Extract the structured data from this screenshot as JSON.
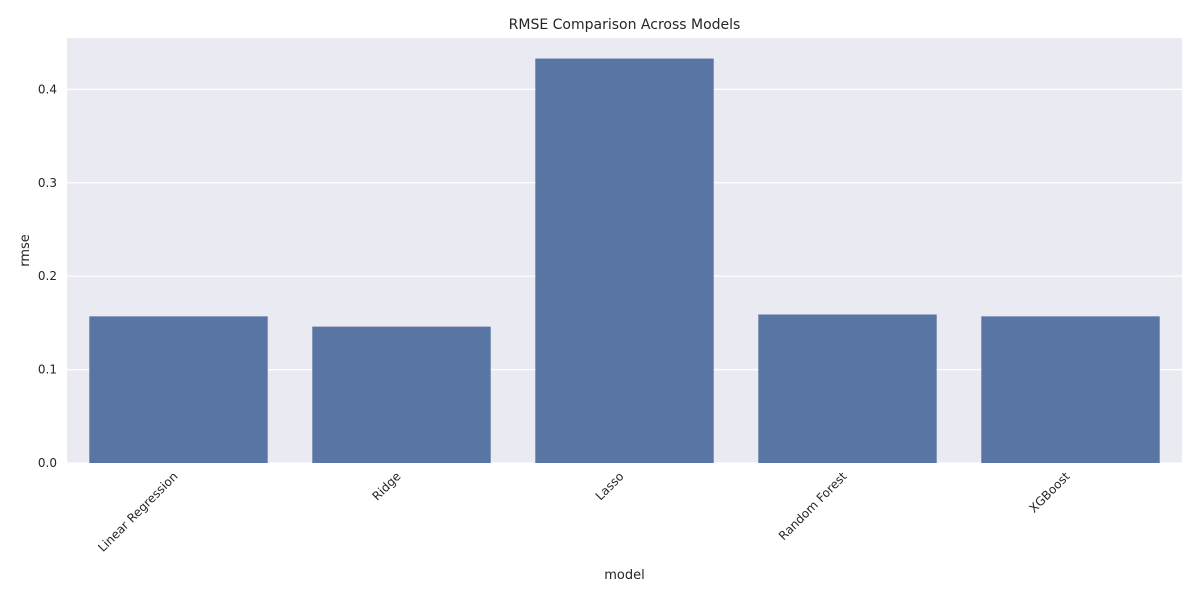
{
  "chart_data": {
    "type": "bar",
    "title": "RMSE Comparison Across Models",
    "xlabel": "model",
    "ylabel": "rmse",
    "categories": [
      "Linear Regression",
      "Ridge",
      "Lasso",
      "Random Forest",
      "XGBoost"
    ],
    "values": [
      0.157,
      0.146,
      0.433,
      0.159,
      0.157
    ],
    "ylim": [
      0,
      0.455
    ],
    "yticks": [
      0.0,
      0.1,
      0.2,
      0.3,
      0.4
    ],
    "ytick_labels": [
      "0.0",
      "0.1",
      "0.2",
      "0.3",
      "0.4"
    ],
    "grid": true,
    "style": "seaborn-darkgrid",
    "colors": {
      "bar": "#5975a4",
      "plot_background": "#eaeaf2",
      "grid": "#ffffff",
      "text": "#262626"
    }
  }
}
